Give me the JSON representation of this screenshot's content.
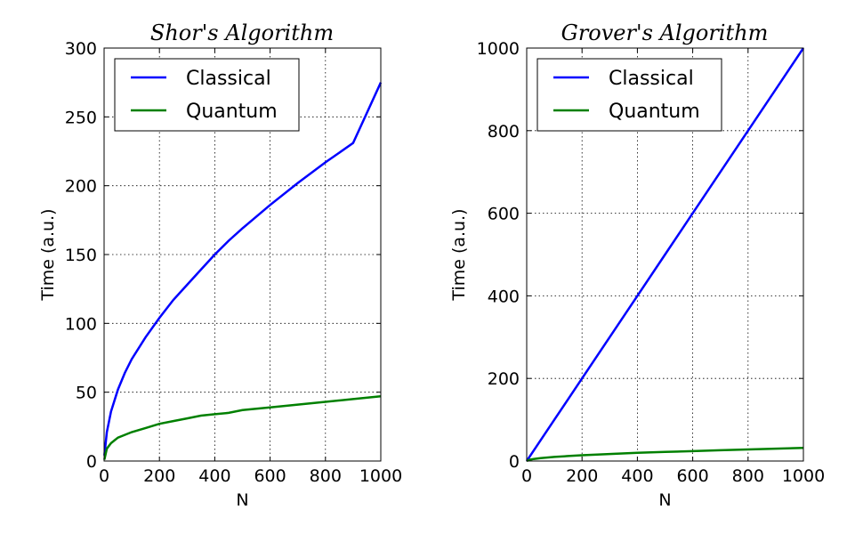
{
  "chart_data": [
    {
      "type": "line",
      "title": "Shor's Algorithm",
      "xlabel": "N",
      "ylabel": "Time (a.u.)",
      "xlim": [
        0,
        1000
      ],
      "ylim": [
        0,
        300
      ],
      "xticks": [
        0,
        200,
        400,
        600,
        800,
        1000
      ],
      "yticks": [
        0,
        50,
        100,
        150,
        200,
        250,
        300
      ],
      "grid": true,
      "legend_position": "top-left",
      "series": [
        {
          "name": "Classical",
          "color": "#0000ff",
          "x": [
            1,
            10,
            25,
            50,
            75,
            100,
            150,
            200,
            250,
            300,
            350,
            400,
            450,
            500,
            600,
            700,
            800,
            900,
            1000
          ],
          "y": [
            4,
            21,
            36,
            52,
            64,
            74,
            90,
            104,
            117,
            128,
            139,
            150,
            160,
            169,
            186,
            202,
            217,
            231,
            275
          ]
        },
        {
          "name": "Quantum",
          "color": "#008000",
          "x": [
            1,
            10,
            25,
            50,
            75,
            100,
            150,
            200,
            250,
            300,
            350,
            400,
            450,
            500,
            600,
            700,
            800,
            900,
            1000
          ],
          "y": [
            1,
            9,
            13,
            17,
            19,
            21,
            24,
            27,
            29,
            31,
            33,
            34,
            35,
            37,
            39,
            41,
            43,
            45,
            47
          ]
        }
      ]
    },
    {
      "type": "line",
      "title": "Grover's Algorithm",
      "xlabel": "N",
      "ylabel": "Time (a.u.)",
      "xlim": [
        0,
        1000
      ],
      "ylim": [
        0,
        1000
      ],
      "xticks": [
        0,
        200,
        400,
        600,
        800,
        1000
      ],
      "yticks": [
        0,
        200,
        400,
        600,
        800,
        1000
      ],
      "grid": true,
      "legend_position": "top-left",
      "series": [
        {
          "name": "Classical",
          "color": "#0000ff",
          "x": [
            0,
            100,
            200,
            300,
            400,
            500,
            600,
            700,
            800,
            900,
            1000
          ],
          "y": [
            0,
            100,
            200,
            300,
            400,
            500,
            600,
            700,
            800,
            900,
            1000
          ]
        },
        {
          "name": "Quantum",
          "color": "#008000",
          "x": [
            0,
            10,
            25,
            50,
            100,
            150,
            200,
            300,
            400,
            500,
            600,
            700,
            800,
            900,
            1000
          ],
          "y": [
            0,
            3,
            5,
            7,
            10,
            12,
            14,
            17,
            20,
            22,
            24,
            26,
            28,
            30,
            32
          ]
        }
      ]
    }
  ]
}
